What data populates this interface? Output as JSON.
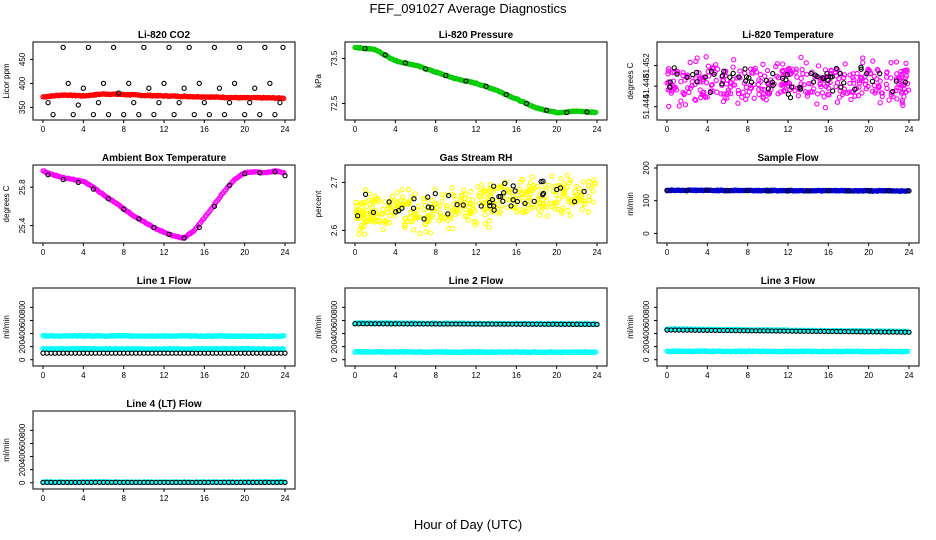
{
  "title": "FEF_091027  Average Diagnostics",
  "xlabel": "Hour of Day (UTC)",
  "colors": {
    "red": "#ff0000",
    "green": "#00cc00",
    "magenta": "#ff00ff",
    "yellow": "#ffff00",
    "blue": "#0000cc",
    "cyan": "#00ffff",
    "black": "#000000"
  },
  "chart_data": [
    {
      "type": "scatter",
      "title": "Li-820 CO2",
      "ylabel": "Licor ppm",
      "xlim": [
        0,
        24
      ],
      "ylim": [
        330,
        480
      ],
      "xticks": [
        "0",
        "4",
        "8",
        "12",
        "16",
        "20",
        "24"
      ],
      "yticks": [
        350,
        400,
        450
      ],
      "series": [
        {
          "color": "red",
          "style": "dense",
          "values": [
            [
              0,
              372
            ],
            [
              2,
              376
            ],
            [
              4,
              374
            ],
            [
              6,
              378
            ],
            [
              8,
              377
            ],
            [
              10,
              375
            ],
            [
              12,
              374
            ],
            [
              14,
              373
            ],
            [
              16,
              372
            ],
            [
              18,
              371
            ],
            [
              20,
              370
            ],
            [
              22,
              370
            ],
            [
              24,
              369
            ]
          ]
        },
        {
          "color": "black",
          "style": "circles",
          "values": [
            [
              0.5,
              360
            ],
            [
              1,
              335
            ],
            [
              2,
              475
            ],
            [
              2.5,
              400
            ],
            [
              3,
              335
            ],
            [
              3.5,
              355
            ],
            [
              4,
              390
            ],
            [
              4.5,
              475
            ],
            [
              5,
              335
            ],
            [
              5.5,
              360
            ],
            [
              6,
              400
            ],
            [
              6.5,
              335
            ],
            [
              7,
              475
            ],
            [
              7.5,
              380
            ],
            [
              8,
              335
            ],
            [
              8.5,
              400
            ],
            [
              9,
              360
            ],
            [
              9.5,
              335
            ],
            [
              10,
              475
            ],
            [
              10.5,
              390
            ],
            [
              11,
              335
            ],
            [
              11.5,
              360
            ],
            [
              12,
              400
            ],
            [
              12.5,
              475
            ],
            [
              13,
              335
            ],
            [
              13.5,
              360
            ],
            [
              14,
              390
            ],
            [
              14.5,
              475
            ],
            [
              15,
              335
            ],
            [
              15.5,
              400
            ],
            [
              16,
              360
            ],
            [
              16.5,
              335
            ],
            [
              17,
              475
            ],
            [
              17.5,
              390
            ],
            [
              18,
              335
            ],
            [
              18.5,
              360
            ],
            [
              19,
              400
            ],
            [
              19.5,
              475
            ],
            [
              20,
              335
            ],
            [
              20.5,
              360
            ],
            [
              21,
              390
            ],
            [
              21.5,
              335
            ],
            [
              22,
              475
            ],
            [
              22.5,
              400
            ],
            [
              23,
              335
            ],
            [
              23.5,
              360
            ],
            [
              23.8,
              475
            ]
          ]
        }
      ]
    },
    {
      "type": "scatter",
      "title": "Li-820 Pressure",
      "ylabel": "kPa",
      "xlim": [
        0,
        24
      ],
      "ylim": [
        72.2,
        73.8
      ],
      "xticks": [
        "0",
        "4",
        "8",
        "12",
        "16",
        "20",
        "24"
      ],
      "yticks": [
        72.5,
        73.5
      ],
      "series": [
        {
          "color": "green",
          "style": "dense",
          "values": [
            [
              0,
              73.75
            ],
            [
              2,
              73.7
            ],
            [
              4,
              73.45
            ],
            [
              6,
              73.35
            ],
            [
              8,
              73.2
            ],
            [
              10,
              73.05
            ],
            [
              12,
              72.95
            ],
            [
              14,
              72.8
            ],
            [
              16,
              72.6
            ],
            [
              18,
              72.4
            ],
            [
              20,
              72.3
            ],
            [
              22,
              72.33
            ],
            [
              24,
              72.3
            ]
          ]
        },
        {
          "color": "black",
          "style": "circles",
          "values": [
            [
              1,
              73.72
            ],
            [
              3,
              73.58
            ],
            [
              5,
              73.4
            ],
            [
              7,
              73.27
            ],
            [
              9,
              73.12
            ],
            [
              11,
              73.0
            ],
            [
              13,
              72.88
            ],
            [
              15,
              72.7
            ],
            [
              17,
              72.5
            ],
            [
              19,
              72.35
            ],
            [
              21,
              72.3
            ],
            [
              23,
              72.31
            ]
          ]
        }
      ]
    },
    {
      "type": "scatter",
      "title": "Li-820 Temperature",
      "ylabel": "degrees C",
      "xlim": [
        0,
        24
      ],
      "ylim": [
        51.442,
        51.456
      ],
      "xticks": [
        "0",
        "4",
        "8",
        "12",
        "16",
        "20",
        "24"
      ],
      "yticks": [
        51.444,
        51.448,
        51.452
      ],
      "series": [
        {
          "color": "magenta",
          "style": "scatter",
          "center": 51.449,
          "spread": 0.004,
          "count": 360
        },
        {
          "color": "black",
          "style": "scatter",
          "center": 51.449,
          "spread": 0.003,
          "count": 60
        }
      ]
    },
    {
      "type": "scatter",
      "title": "Ambient Box Temperature",
      "ylabel": "degrees C",
      "xlim": [
        0,
        24
      ],
      "ylim": [
        25.25,
        26.0
      ],
      "xticks": [
        "0",
        "4",
        "8",
        "12",
        "16",
        "20",
        "24"
      ],
      "yticks": [
        25.4,
        25.8
      ],
      "series": [
        {
          "color": "magenta",
          "style": "dense",
          "values": [
            [
              0,
              25.97
            ],
            [
              1,
              25.93
            ],
            [
              2,
              25.9
            ],
            [
              3,
              25.88
            ],
            [
              4,
              25.86
            ],
            [
              5,
              25.8
            ],
            [
              6,
              25.72
            ],
            [
              7,
              25.65
            ],
            [
              8,
              25.58
            ],
            [
              9,
              25.5
            ],
            [
              10,
              25.44
            ],
            [
              11,
              25.38
            ],
            [
              12,
              25.33
            ],
            [
              13,
              25.29
            ],
            [
              14,
              25.27
            ],
            [
              15,
              25.35
            ],
            [
              16,
              25.48
            ],
            [
              17,
              25.62
            ],
            [
              18,
              25.76
            ],
            [
              19,
              25.88
            ],
            [
              20,
              25.95
            ],
            [
              21,
              25.96
            ],
            [
              22,
              25.95
            ],
            [
              23,
              25.97
            ],
            [
              24,
              25.95
            ]
          ]
        },
        {
          "color": "black",
          "style": "circles",
          "values": [
            [
              0.5,
              25.93
            ],
            [
              2,
              25.88
            ],
            [
              3.5,
              25.85
            ],
            [
              5,
              25.78
            ],
            [
              6.5,
              25.68
            ],
            [
              8,
              25.57
            ],
            [
              9.5,
              25.47
            ],
            [
              11,
              25.38
            ],
            [
              12.5,
              25.31
            ],
            [
              14,
              25.27
            ],
            [
              15.5,
              25.38
            ],
            [
              17,
              25.6
            ],
            [
              18.5,
              25.82
            ],
            [
              20,
              25.94
            ],
            [
              21.5,
              25.95
            ],
            [
              23,
              25.96
            ],
            [
              24,
              25.92
            ]
          ]
        }
      ]
    },
    {
      "type": "scatter",
      "title": "Gas Stream RH",
      "ylabel": "percent",
      "xlim": [
        0,
        24
      ],
      "ylim": [
        2.58,
        2.73
      ],
      "xticks": [
        "0",
        "4",
        "8",
        "12",
        "16",
        "20",
        "24"
      ],
      "yticks": [
        2.6,
        2.7
      ],
      "series": [
        {
          "color": "yellow",
          "style": "scatter",
          "trend": [
            2.63,
            2.68
          ],
          "spread": 0.04,
          "count": 420
        },
        {
          "color": "black",
          "style": "scatter",
          "trend": [
            2.64,
            2.69
          ],
          "spread": 0.03,
          "count": 45
        }
      ]
    },
    {
      "type": "scatter",
      "title": "Sample Flow",
      "ylabel": "ml/min",
      "xlim": [
        0,
        24
      ],
      "ylim": [
        -20,
        200
      ],
      "xticks": [
        "0",
        "4",
        "8",
        "12",
        "16",
        "20",
        "24"
      ],
      "yticks": [
        0,
        100,
        200
      ],
      "series": [
        {
          "color": "blue",
          "style": "dense",
          "values": [
            [
              0,
              132
            ],
            [
              24,
              130
            ]
          ]
        },
        {
          "color": "black",
          "style": "circles",
          "values": [
            [
              0,
              132
            ],
            [
              2,
              131
            ],
            [
              4,
              132
            ],
            [
              6,
              131
            ],
            [
              8,
              131
            ],
            [
              10,
              130
            ],
            [
              12,
              131
            ],
            [
              14,
              130
            ],
            [
              16,
              131
            ],
            [
              18,
              130
            ],
            [
              20,
              131
            ],
            [
              22,
              130
            ],
            [
              24,
              130
            ]
          ]
        }
      ]
    },
    {
      "type": "scatter",
      "title": "Line 1 Flow",
      "ylabel": "ml/min",
      "xlim": [
        0,
        24
      ],
      "ylim": [
        -50,
        1050
      ],
      "xticks": [
        "0",
        "4",
        "8",
        "12",
        "16",
        "20",
        "24"
      ],
      "yticks": [
        0,
        200,
        400,
        600,
        800
      ],
      "series": [
        {
          "color": "cyan",
          "style": "dense",
          "values": [
            [
              0,
              365
            ],
            [
              24,
              360
            ]
          ]
        },
        {
          "color": "cyan",
          "style": "dense",
          "values": [
            [
              0,
              165
            ],
            [
              24,
              165
            ]
          ]
        },
        {
          "color": "black",
          "style": "circles",
          "values": [
            [
              0,
              100
            ],
            [
              24,
              100
            ]
          ]
        }
      ]
    },
    {
      "type": "scatter",
      "title": "Line 2 Flow",
      "ylabel": "ml/min",
      "xlim": [
        0,
        24
      ],
      "ylim": [
        -50,
        1050
      ],
      "xticks": [
        "0",
        "4",
        "8",
        "12",
        "16",
        "20",
        "24"
      ],
      "yticks": [
        0,
        200,
        400,
        600,
        800
      ],
      "series": [
        {
          "color": "cyan",
          "style": "dense",
          "values": [
            [
              0,
              560
            ],
            [
              24,
              545
            ]
          ]
        },
        {
          "color": "cyan",
          "style": "dense",
          "values": [
            [
              0,
              120
            ],
            [
              24,
              115
            ]
          ]
        },
        {
          "color": "black",
          "style": "circles",
          "values": [
            [
              0,
              550
            ],
            [
              24,
              540
            ]
          ]
        }
      ]
    },
    {
      "type": "scatter",
      "title": "Line 3 Flow",
      "ylabel": "ml/min",
      "xlim": [
        0,
        24
      ],
      "ylim": [
        -50,
        1050
      ],
      "xticks": [
        "0",
        "4",
        "8",
        "12",
        "16",
        "20",
        "24"
      ],
      "yticks": [
        0,
        200,
        400,
        600,
        800
      ],
      "series": [
        {
          "color": "cyan",
          "style": "dense",
          "values": [
            [
              0,
              470
            ],
            [
              24,
              430
            ]
          ]
        },
        {
          "color": "cyan",
          "style": "dense",
          "values": [
            [
              0,
              130
            ],
            [
              24,
              125
            ]
          ]
        },
        {
          "color": "black",
          "style": "circles",
          "values": [
            [
              0,
              455
            ],
            [
              24,
              420
            ]
          ]
        }
      ]
    },
    {
      "type": "scatter",
      "title": "Line 4 (LT) Flow",
      "ylabel": "ml/min",
      "xlim": [
        0,
        24
      ],
      "ylim": [
        -50,
        1050
      ],
      "xticks": [
        "0",
        "4",
        "8",
        "12",
        "16",
        "20",
        "24"
      ],
      "yticks": [
        0,
        200,
        400,
        600,
        800
      ],
      "series": [
        {
          "color": "cyan",
          "style": "dense",
          "values": [
            [
              0,
              10
            ],
            [
              24,
              10
            ]
          ]
        },
        {
          "color": "black",
          "style": "circles",
          "values": [
            [
              0,
              5
            ],
            [
              24,
              5
            ]
          ]
        }
      ]
    }
  ]
}
